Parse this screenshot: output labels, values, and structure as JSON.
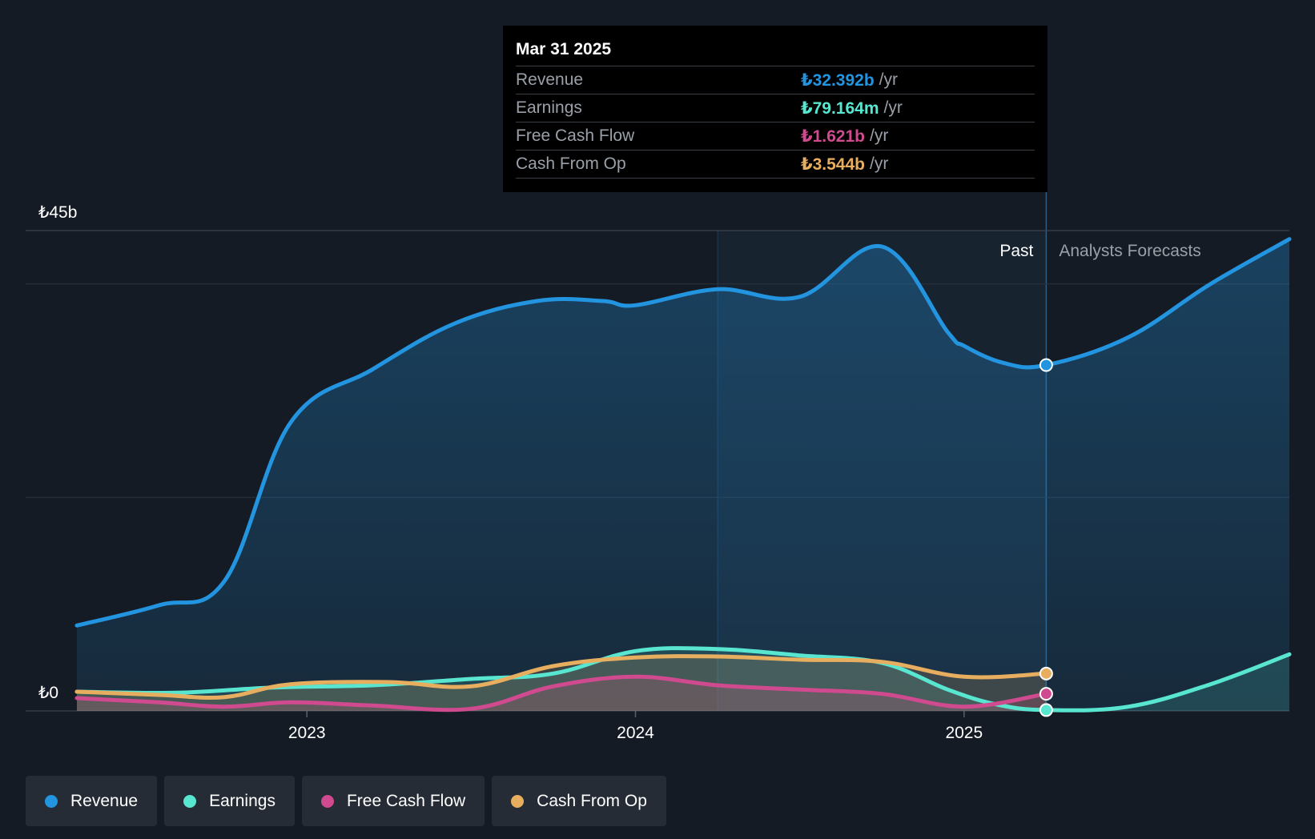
{
  "chart_data": {
    "type": "line",
    "title": "",
    "currency_symbol": "₺",
    "y_axis_labels": [
      "₺45b",
      "₺0"
    ],
    "ylim": [
      0,
      45
    ],
    "x_ticks": [
      "2023",
      "2024",
      "2025"
    ],
    "regions": {
      "past_label": "Past",
      "forecast_label": "Analysts Forecasts"
    },
    "series": [
      {
        "name": "Revenue",
        "color": "#2394df",
        "unit": "b",
        "points": [
          [
            2022.3,
            8.0
          ],
          [
            2022.55,
            9.9
          ],
          [
            2022.75,
            12.2
          ],
          [
            2022.95,
            27.0
          ],
          [
            2023.2,
            32.0
          ],
          [
            2023.45,
            36.3
          ],
          [
            2023.7,
            38.4
          ],
          [
            2023.9,
            38.4
          ],
          [
            2024.0,
            38.0
          ],
          [
            2024.25,
            39.5
          ],
          [
            2024.5,
            38.8
          ],
          [
            2024.75,
            43.5
          ],
          [
            2024.95,
            35.5
          ],
          [
            2025.0,
            34.2
          ],
          [
            2025.12,
            32.6
          ],
          [
            2025.25,
            32.4
          ],
          [
            2025.5,
            35.0
          ],
          [
            2025.75,
            40.0
          ],
          [
            2025.99,
            44.2
          ]
        ]
      },
      {
        "name": "Earnings",
        "color": "#58e6d1",
        "unit": "b",
        "points": [
          [
            2022.3,
            1.8
          ],
          [
            2022.6,
            1.7
          ],
          [
            2022.9,
            2.2
          ],
          [
            2023.2,
            2.4
          ],
          [
            2023.5,
            3.0
          ],
          [
            2023.75,
            3.5
          ],
          [
            2024.0,
            5.6
          ],
          [
            2024.25,
            5.8
          ],
          [
            2024.5,
            5.2
          ],
          [
            2024.75,
            4.5
          ],
          [
            2024.95,
            2.0
          ],
          [
            2025.1,
            0.6
          ],
          [
            2025.25,
            0.08
          ],
          [
            2025.5,
            0.4
          ],
          [
            2025.75,
            2.5
          ],
          [
            2025.99,
            5.3
          ]
        ]
      },
      {
        "name": "Free Cash Flow",
        "color": "#cf4a8e",
        "unit": "b",
        "points": [
          [
            2022.3,
            1.2
          ],
          [
            2022.55,
            0.8
          ],
          [
            2022.75,
            0.4
          ],
          [
            2022.95,
            0.8
          ],
          [
            2023.2,
            0.5
          ],
          [
            2023.5,
            0.2
          ],
          [
            2023.75,
            2.3
          ],
          [
            2024.0,
            3.2
          ],
          [
            2024.25,
            2.4
          ],
          [
            2024.5,
            2.0
          ],
          [
            2024.75,
            1.6
          ],
          [
            2025.0,
            0.4
          ],
          [
            2025.25,
            1.6
          ]
        ]
      },
      {
        "name": "Cash From Op",
        "color": "#e8ae60",
        "unit": "b",
        "points": [
          [
            2022.3,
            1.8
          ],
          [
            2022.55,
            1.5
          ],
          [
            2022.75,
            1.3
          ],
          [
            2022.95,
            2.5
          ],
          [
            2023.25,
            2.7
          ],
          [
            2023.5,
            2.3
          ],
          [
            2023.75,
            4.2
          ],
          [
            2024.0,
            5.0
          ],
          [
            2024.25,
            5.1
          ],
          [
            2024.5,
            4.8
          ],
          [
            2024.75,
            4.6
          ],
          [
            2025.0,
            3.2
          ],
          [
            2025.25,
            3.5
          ]
        ]
      }
    ]
  },
  "tooltip": {
    "date": "Mar 31 2025",
    "rows": [
      {
        "label": "Revenue",
        "value": "₺32.392b",
        "unit": "/yr",
        "color": "#2394df"
      },
      {
        "label": "Earnings",
        "value": "₺79.164m",
        "unit": "/yr",
        "color": "#58e6d1"
      },
      {
        "label": "Free Cash Flow",
        "value": "₺1.621b",
        "unit": "/yr",
        "color": "#cf4a8e"
      },
      {
        "label": "Cash From Op",
        "value": "₺3.544b",
        "unit": "/yr",
        "color": "#e8ae60"
      }
    ]
  },
  "legend": [
    {
      "label": "Revenue",
      "color": "#2394df"
    },
    {
      "label": "Earnings",
      "color": "#58e6d1"
    },
    {
      "label": "Free Cash Flow",
      "color": "#cf4a8e"
    },
    {
      "label": "Cash From Op",
      "color": "#e8ae60"
    }
  ]
}
